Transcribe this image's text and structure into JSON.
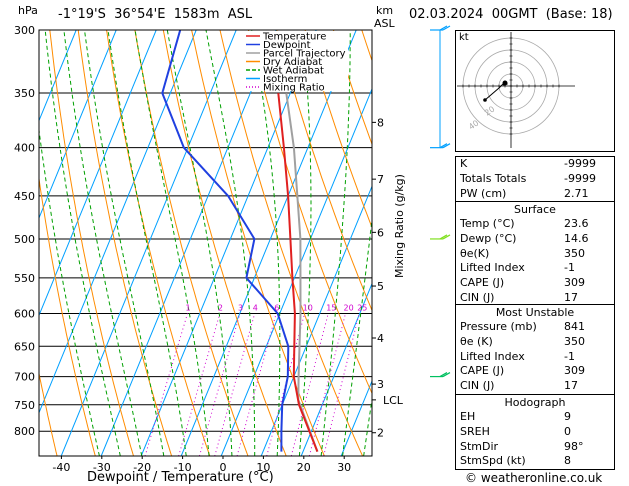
{
  "header": {
    "hpa_label": "hPa",
    "location": "-1°19'S  36°54'E  1583m  ASL",
    "km_label": "km",
    "asl_label": "ASL",
    "datetime": "02.03.2024  00GMT  (Base: 18)"
  },
  "footer": {
    "credit": "© weatheronline.co.uk"
  },
  "chart_data": {
    "type": "skew-t",
    "xlabel": "Dewpoint / Temperature (°C)",
    "ylabel": "hPa",
    "right_label": "Mixing Ratio (g/kg)",
    "pressure_levels": [
      300,
      350,
      400,
      450,
      500,
      550,
      600,
      650,
      700,
      750,
      800
    ],
    "temp_ticks": [
      -40,
      -30,
      -20,
      -10,
      0,
      10,
      20,
      30
    ],
    "height_km": [
      {
        "km": "8",
        "p": 376
      },
      {
        "km": "7",
        "p": 432
      },
      {
        "km": "6",
        "p": 492
      },
      {
        "km": "5",
        "p": 561
      },
      {
        "km": "4",
        "p": 637
      },
      {
        "km": "3",
        "p": 713
      },
      {
        "km": "LCL",
        "p": 741
      },
      {
        "km": "2",
        "p": 803
      }
    ],
    "mixing_ratio_labels": [
      "1",
      "2",
      "3",
      "4",
      "6",
      "10",
      "15",
      "20",
      "25"
    ],
    "mixing_ratio_values": [
      1,
      2,
      3,
      4,
      6,
      10,
      15,
      20,
      25
    ],
    "legend": [
      "Temperature",
      "Dewpoint",
      "Parcel Trajectory",
      "Dry Adiabat",
      "Wet Adiabat",
      "Isotherm",
      "Mixing Ratio"
    ],
    "colors": {
      "temperature": "#e02020",
      "dewpoint": "#2040e0",
      "parcel": "#a0a0a0",
      "dry_adiabat": "#ff8c00",
      "wet_adiabat": "#00a000",
      "isotherm": "#00a0ff",
      "mixing_ratio": "#d000d0",
      "wind": "#00a0ff"
    },
    "temperature": [
      {
        "p": 841,
        "t": 23.6
      },
      {
        "p": 800,
        "t": 19.5
      },
      {
        "p": 750,
        "t": 14.2
      },
      {
        "p": 700,
        "t": 10.0
      },
      {
        "p": 650,
        "t": 7.0
      },
      {
        "p": 600,
        "t": 3.8
      },
      {
        "p": 550,
        "t": -0.5
      },
      {
        "p": 500,
        "t": -5.0
      },
      {
        "p": 450,
        "t": -10.0
      },
      {
        "p": 400,
        "t": -16.0
      },
      {
        "p": 350,
        "t": -23.0
      }
    ],
    "dewpoint": [
      {
        "p": 841,
        "t": 14.6
      },
      {
        "p": 800,
        "t": 12.5
      },
      {
        "p": 750,
        "t": 10.0
      },
      {
        "p": 700,
        "t": 8.5
      },
      {
        "p": 650,
        "t": 5.5
      },
      {
        "p": 600,
        "t": -0.5
      },
      {
        "p": 550,
        "t": -12.0
      },
      {
        "p": 500,
        "t": -14.0
      },
      {
        "p": 450,
        "t": -25.0
      },
      {
        "p": 400,
        "t": -41.0
      },
      {
        "p": 350,
        "t": -52.0
      },
      {
        "p": 300,
        "t": -54.0
      }
    ],
    "parcel": [
      {
        "p": 841,
        "t": 23.6
      },
      {
        "p": 741,
        "t": 13.5
      },
      {
        "p": 700,
        "t": 11.2
      },
      {
        "p": 600,
        "t": 5.2
      },
      {
        "p": 500,
        "t": -2.5
      },
      {
        "p": 400,
        "t": -13.5
      },
      {
        "p": 350,
        "t": -21.0
      }
    ],
    "wind_levels_p": [
      300,
      400,
      500,
      700
    ],
    "wind_colors": [
      "#00a0ff",
      "#00a0ff",
      "#80e020",
      "#00c060"
    ]
  },
  "hodograph": {
    "label": "kt",
    "rings": [
      "10",
      "20",
      "30",
      "40"
    ],
    "ring_labels": [
      "20",
      "40"
    ]
  },
  "indices": [
    {
      "label": "K",
      "value": "-9999"
    },
    {
      "label": "Totals Totals",
      "value": "-9999"
    },
    {
      "label": "PW (cm)",
      "value": "2.71"
    }
  ],
  "surface": {
    "title": "Surface",
    "rows": [
      {
        "label": "Temp (°C)",
        "value": "23.6"
      },
      {
        "label": "Dewp (°C)",
        "value": "14.6"
      },
      {
        "label": "θe(K)",
        "value": "350"
      },
      {
        "label": "Lifted Index",
        "value": "-1"
      },
      {
        "label": "CAPE (J)",
        "value": "309"
      },
      {
        "label": "CIN (J)",
        "value": "17"
      }
    ]
  },
  "most_unstable": {
    "title": "Most Unstable",
    "rows": [
      {
        "label": "Pressure (mb)",
        "value": "841"
      },
      {
        "label": "θe (K)",
        "value": "350"
      },
      {
        "label": "Lifted Index",
        "value": "-1"
      },
      {
        "label": "CAPE (J)",
        "value": "309"
      },
      {
        "label": "CIN (J)",
        "value": "17"
      }
    ]
  },
  "hodograph_stats": {
    "title": "Hodograph",
    "rows": [
      {
        "label": "EH",
        "value": "9"
      },
      {
        "label": "SREH",
        "value": "0"
      },
      {
        "label": "StmDir",
        "value": "98°"
      },
      {
        "label": "StmSpd (kt)",
        "value": "8"
      }
    ]
  }
}
